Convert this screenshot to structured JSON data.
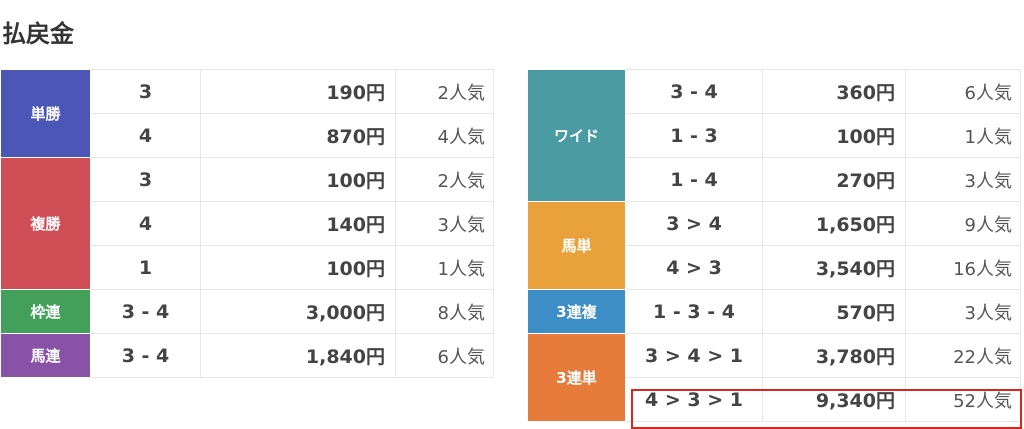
{
  "title": "払戻金",
  "left_table": [
    {
      "label": "単勝",
      "color": "#4b56b6",
      "rows": [
        {
          "combo": "3",
          "payout": "190円",
          "popularity": "2人気"
        },
        {
          "combo": "4",
          "payout": "870円",
          "popularity": "4人気"
        }
      ]
    },
    {
      "label": "複勝",
      "color": "#cf4e55",
      "rows": [
        {
          "combo": "3",
          "payout": "100円",
          "popularity": "2人気"
        },
        {
          "combo": "4",
          "payout": "140円",
          "popularity": "3人気"
        },
        {
          "combo": "1",
          "payout": "100円",
          "popularity": "1人気"
        }
      ]
    },
    {
      "label": "枠連",
      "color": "#43a05a",
      "rows": [
        {
          "combo": "3 - 4",
          "payout": "3,000円",
          "popularity": "8人気"
        }
      ]
    },
    {
      "label": "馬連",
      "color": "#8852a6",
      "rows": [
        {
          "combo": "3 - 4",
          "payout": "1,840円",
          "popularity": "6人気"
        }
      ]
    }
  ],
  "right_table": [
    {
      "label": "ワイド",
      "color": "#4a9ba2",
      "rows": [
        {
          "combo": "3 - 4",
          "payout": "360円",
          "popularity": "6人気"
        },
        {
          "combo": "1 - 3",
          "payout": "100円",
          "popularity": "1人気"
        },
        {
          "combo": "1 - 4",
          "payout": "270円",
          "popularity": "3人気"
        }
      ]
    },
    {
      "label": "馬単",
      "color": "#e9a23b",
      "rows": [
        {
          "combo": "3 > 4",
          "payout": "1,650円",
          "popularity": "9人気"
        },
        {
          "combo": "4 > 3",
          "payout": "3,540円",
          "popularity": "16人気"
        }
      ]
    },
    {
      "label": "3連複",
      "color": "#3d8ec6",
      "rows": [
        {
          "combo": "1 - 3 - 4",
          "payout": "570円",
          "popularity": "3人気"
        }
      ]
    },
    {
      "label": "3連単",
      "color": "#e67b3c",
      "rows": [
        {
          "combo": "3 > 4 > 1",
          "payout": "3,780円",
          "popularity": "22人気"
        },
        {
          "combo": "4 > 3 > 1",
          "payout": "9,340円",
          "popularity": "52人気",
          "highlighted": true
        }
      ]
    }
  ],
  "highlight_color": "#d8281c"
}
